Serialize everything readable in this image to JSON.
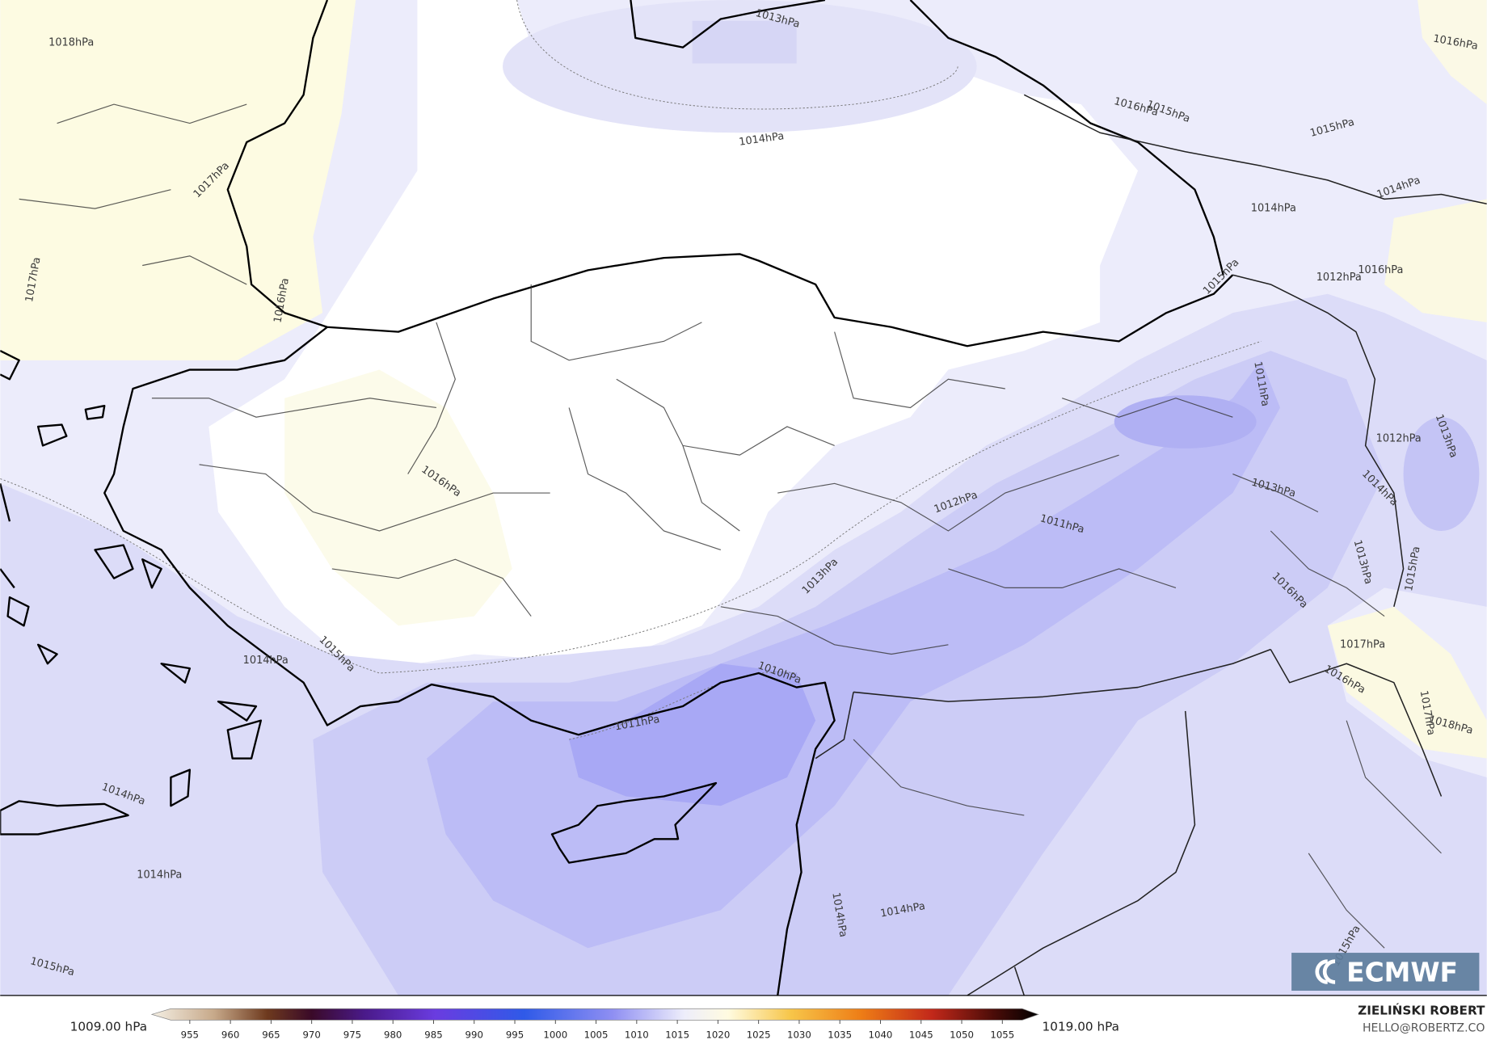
{
  "map": {
    "contour_labels": [
      "1018hPa",
      "1013hPa",
      "1016hPa",
      "1016hPa",
      "1015hPa",
      "1015hPa",
      "1014hPa",
      "1017hPa",
      "1014hPa",
      "1014hPa",
      "1017hPa",
      "1016hPa",
      "1015hPa",
      "1012hPa",
      "1016hPa",
      "1011hPa",
      "1013hPa",
      "1012hPa",
      "1016hPa",
      "1013hPa",
      "1012hPa",
      "1014hPa",
      "1011hPa",
      "1013hPa",
      "1013hPa",
      "1015hPa",
      "1016hPa",
      "1015hPa",
      "1014hPa",
      "1017hPa",
      "1010hPa",
      "1016hPa",
      "1011hPa",
      "1017hPa",
      "1018hPa",
      "1014hPa",
      "1014hPa",
      "1014hPa",
      "1014hPa",
      "1015hPa",
      "1015hPa"
    ],
    "colorbar": {
      "min_label": "1009.00 hPa",
      "max_label": "1019.00 hPa",
      "ticks": [
        955,
        960,
        965,
        970,
        975,
        980,
        985,
        990,
        995,
        1000,
        1005,
        1010,
        1015,
        1020,
        1025,
        1030,
        1035,
        1040,
        1045,
        1050,
        1055
      ]
    },
    "logo": "ECMWF",
    "author": "ZIELIŃSKI ROBERT",
    "email": "HELLO@ROBERTZ.CO"
  }
}
